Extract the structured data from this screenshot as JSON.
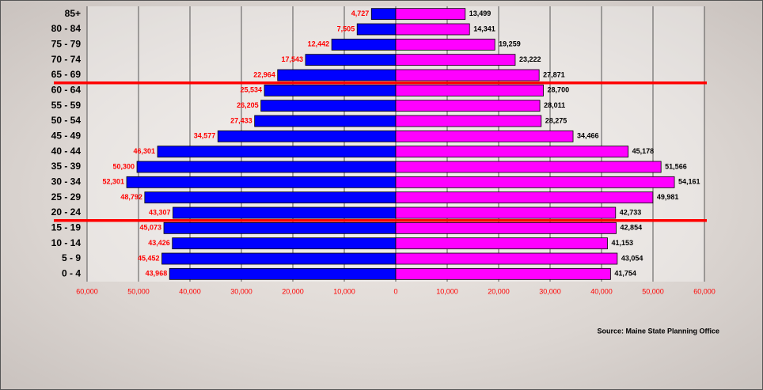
{
  "chart_data": {
    "type": "pyramid",
    "categories": [
      "85+",
      "80 - 84",
      "75 - 79",
      "70 - 74",
      "65 - 69",
      "60 - 64",
      "55 - 59",
      "50 - 54",
      "45 - 49",
      "40 - 44",
      "35 - 39",
      "30 - 34",
      "25 - 29",
      "20 - 24",
      "15 - 19",
      "10 - 14",
      "5 - 9",
      "0 - 4"
    ],
    "series": [
      {
        "color": "#0000ff",
        "label_color": "#ff0000",
        "values": [
          -4727,
          -7505,
          -12442,
          -17543,
          -22964,
          -25534,
          -26205,
          -27433,
          -34577,
          -46301,
          -50300,
          -52301,
          -48792,
          -43307,
          -45073,
          -43426,
          -45452,
          -43968
        ],
        "value_labels": [
          "4,727",
          "7,505",
          "12,442",
          "17,543",
          "22,964",
          "25,534",
          "26,205",
          "27,433",
          "34,577",
          "46,301",
          "50,300",
          "52,301",
          "48,792",
          "43,307",
          "45,073",
          "43,426",
          "45,452",
          "43,968"
        ]
      },
      {
        "color": "#ff00ff",
        "label_color": "#000000",
        "values": [
          13499,
          14341,
          19259,
          23222,
          27871,
          28700,
          28011,
          28275,
          34466,
          45178,
          51566,
          54161,
          49981,
          42733,
          42854,
          41153,
          43054,
          41754
        ],
        "value_labels": [
          "13,499",
          "14,341",
          "19,259",
          "23,222",
          "27,871",
          "28,700",
          "28,011",
          "28,275",
          "34,466",
          "45,178",
          "51,566",
          "54,161",
          "49,981",
          "42,733",
          "42,854",
          "41,153",
          "43,054",
          "41,754"
        ]
      }
    ],
    "xlim": [
      -60000,
      60000
    ],
    "xticks": [
      {
        "value": -60000,
        "label": "60,000"
      },
      {
        "value": -50000,
        "label": "50,000"
      },
      {
        "value": -40000,
        "label": "40,000"
      },
      {
        "value": -30000,
        "label": "30,000"
      },
      {
        "value": -20000,
        "label": "20,000"
      },
      {
        "value": -10000,
        "label": "10,000"
      },
      0,
      {
        "value": 10000,
        "label": "10,000"
      },
      {
        "value": 20000,
        "label": "20,000"
      },
      {
        "value": 30000,
        "label": "30,000"
      },
      {
        "value": 40000,
        "label": "40,000"
      },
      {
        "value": 50000,
        "label": "50,000"
      },
      {
        "value": 60000,
        "label": "60,000"
      }
    ],
    "tick_label_color": "#ff0000",
    "grid": true,
    "source": "Source: Maine State Planning Office"
  }
}
